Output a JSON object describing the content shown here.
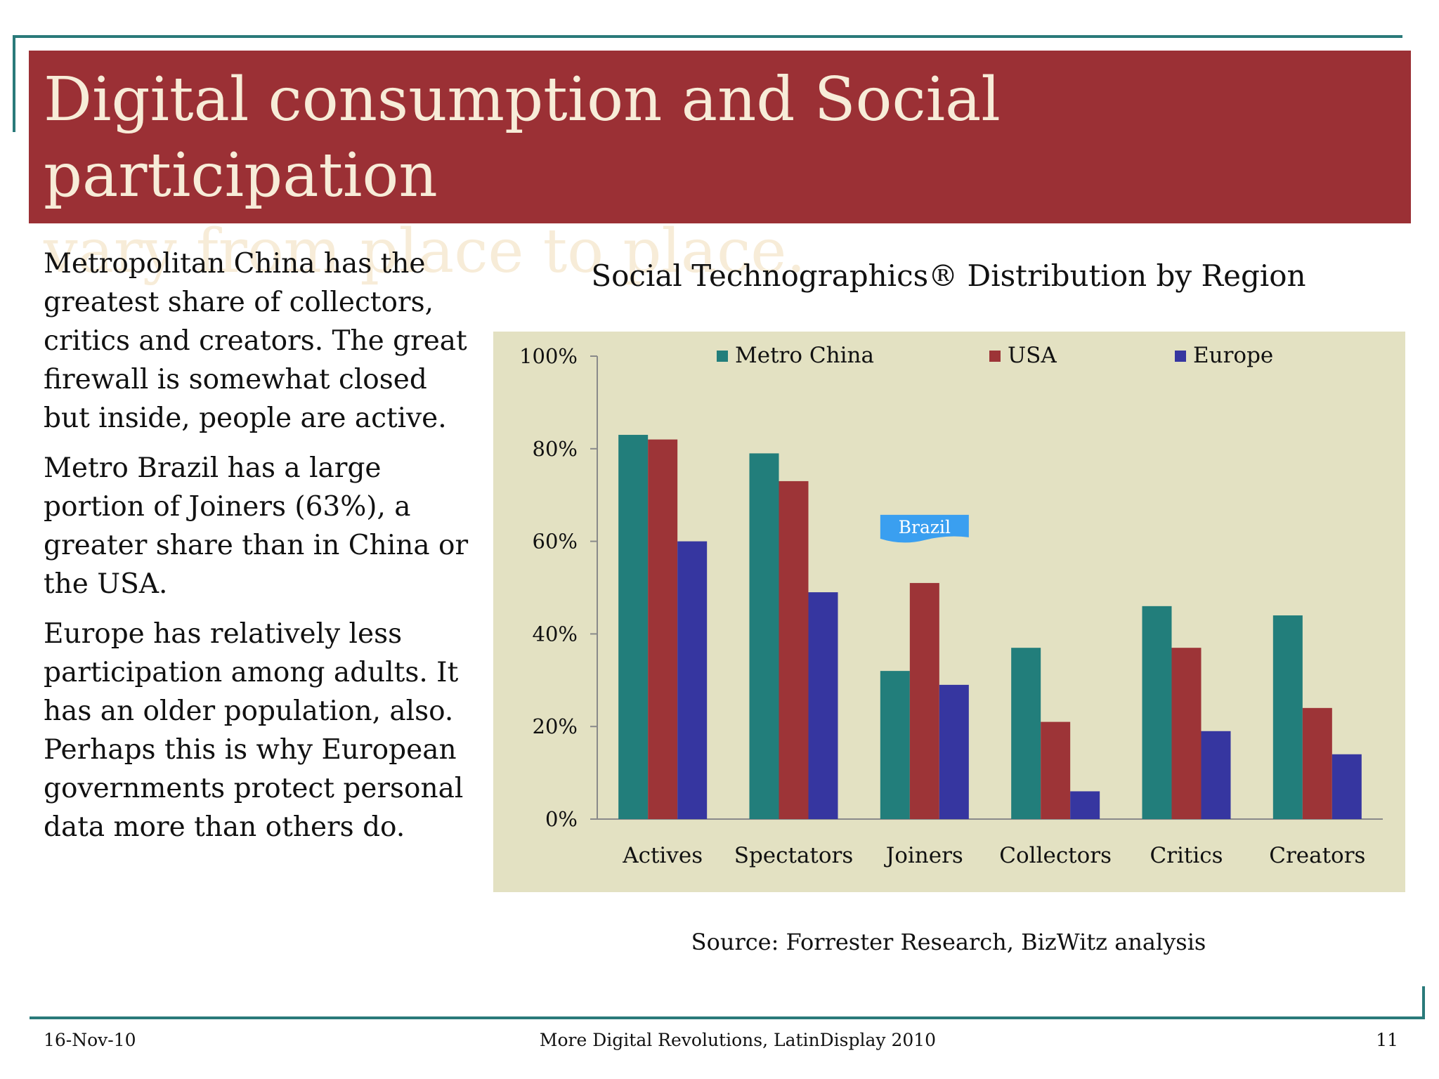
{
  "slide": {
    "title_line1": "Digital consumption and Social participation",
    "title_line2": "vary from place to place.",
    "paragraphs": [
      "Metropolitan China has the greatest share of collectors, critics and creators. The great firewall is somewhat closed but inside, people are active.",
      "Metro Brazil has a large portion of Joiners  (63%), a greater share than in China or the USA.",
      "Europe has relatively less participation among adults. It has an older population, also. Perhaps this is why European governments protect personal data more than others do."
    ],
    "source": "Source: Forrester Research, BizWitz analysis",
    "footer": {
      "date": "16-Nov-10",
      "center": "More Digital Revolutions, LatinDisplay 2010",
      "page": "11"
    }
  },
  "colors": {
    "title_band": "#9b3035",
    "title_text": "#f7ecd8",
    "frame": "#2a7a7a",
    "chart_panel": "#e3e1c2",
    "metro_china": "#227e7b",
    "usa": "#9d3437",
    "europe": "#3636a0",
    "callout": "#3a9ff0"
  },
  "chart_data": {
    "type": "bar",
    "title": "Social Technographics® Distribution by Region",
    "categories": [
      "Actives",
      "Spectators",
      "Joiners",
      "Collectors",
      "Critics",
      "Creators"
    ],
    "series": [
      {
        "name": "Metro China",
        "values": [
          83,
          79,
          32,
          37,
          46,
          44
        ]
      },
      {
        "name": "USA",
        "values": [
          82,
          73,
          51,
          21,
          37,
          24
        ]
      },
      {
        "name": "Europe",
        "values": [
          60,
          49,
          29,
          6,
          19,
          14
        ]
      }
    ],
    "ylim": [
      0,
      100
    ],
    "yticks": [
      "0%",
      "20%",
      "40%",
      "60%",
      "80%",
      "100%"
    ],
    "ytick_values": [
      0,
      20,
      40,
      60,
      80,
      100
    ],
    "legend_position": "top",
    "grid": false,
    "annotation": {
      "text": "Brazil",
      "category": "Joiners",
      "value": 63
    }
  }
}
